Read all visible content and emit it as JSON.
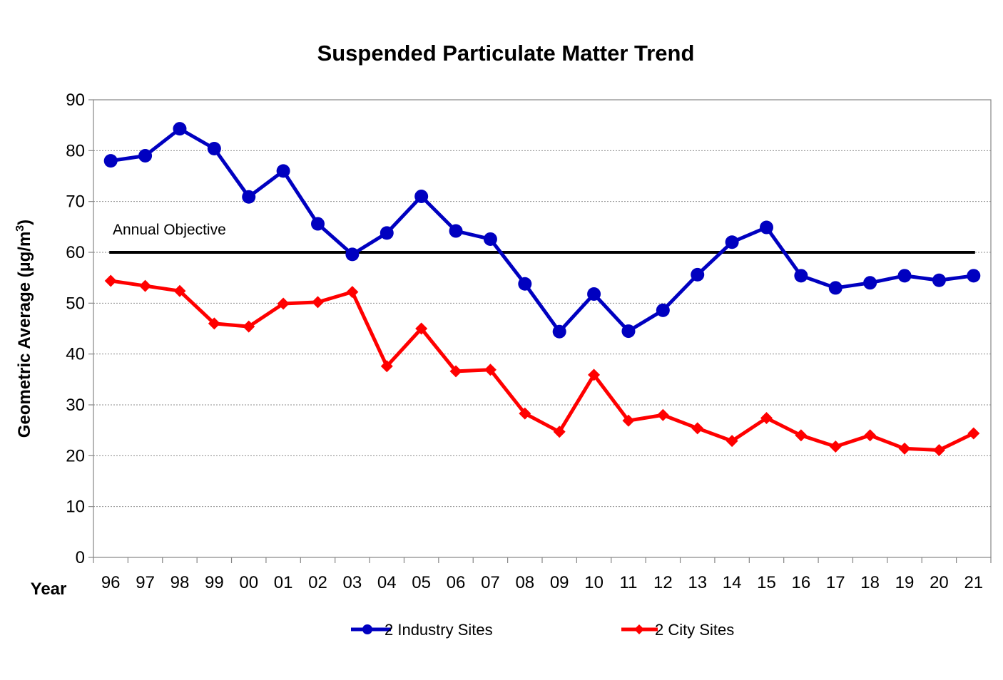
{
  "chart_data": {
    "type": "line",
    "title": "Suspended Particulate Matter Trend",
    "xlabel": "Year",
    "ylabel_main": "Geometric Average (µg/m",
    "ylabel_sup": "3",
    "ylabel_close": ")",
    "categories": [
      "96",
      "97",
      "98",
      "99",
      "00",
      "01",
      "02",
      "03",
      "04",
      "05",
      "06",
      "07",
      "08",
      "09",
      "10",
      "11",
      "12",
      "13",
      "14",
      "15",
      "16",
      "17",
      "18",
      "19",
      "20",
      "21"
    ],
    "ylim": [
      0,
      90
    ],
    "yticks": [
      "0",
      "10",
      "20",
      "30",
      "40",
      "50",
      "60",
      "70",
      "80",
      "90"
    ],
    "grid": true,
    "legend_position": "bottom",
    "series": [
      {
        "name": "2 Industry Sites",
        "color": "#0000C0",
        "marker": "circle",
        "values": [
          78,
          79,
          84.3,
          80.4,
          70.9,
          76,
          65.6,
          59.6,
          63.8,
          71,
          64.2,
          62.6,
          53.8,
          44.4,
          51.8,
          44.5,
          48.6,
          55.6,
          62,
          64.9,
          55.4,
          53,
          54,
          55.4,
          54.5,
          55.4
        ]
      },
      {
        "name": "2 City Sites",
        "color": "#FF0000",
        "marker": "diamond",
        "values": [
          54.4,
          53.4,
          52.4,
          46,
          45.4,
          49.9,
          50.2,
          52.2,
          37.6,
          45,
          36.6,
          36.9,
          28.3,
          24.7,
          35.9,
          26.9,
          28,
          25.4,
          22.9,
          27.4,
          24,
          21.8,
          24,
          21.4,
          21.1,
          24.4
        ]
      }
    ],
    "objective": {
      "label": "Annual Objective",
      "value": 60,
      "color": "#000000"
    }
  }
}
